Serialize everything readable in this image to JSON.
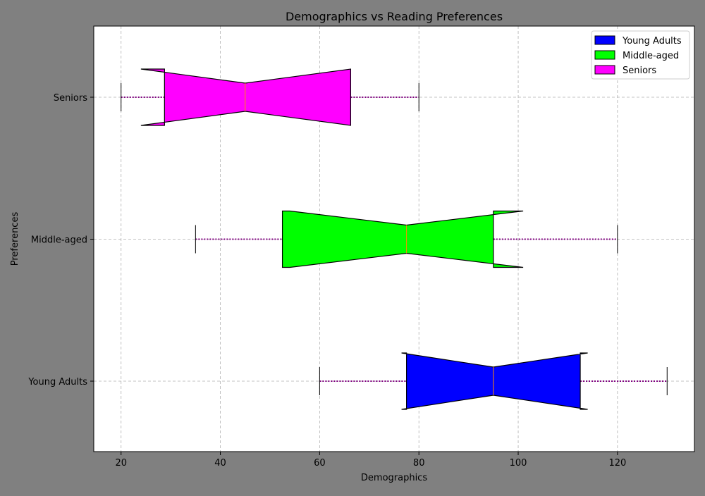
{
  "chart_data": {
    "type": "boxplot",
    "orientation": "horizontal",
    "notched": true,
    "title": "Demographics vs Reading Preferences",
    "xlabel": "Demographics",
    "ylabel": "Preferences",
    "xlim": [
      14.5,
      135.5
    ],
    "xticks": [
      20,
      40,
      60,
      80,
      100,
      120
    ],
    "grid": true,
    "legend_position": "top-right",
    "categories": [
      "Young Adults",
      "Middle-aged",
      "Seniors"
    ],
    "series": [
      {
        "name": "Young Adults",
        "color": "#0000ff",
        "whisker_low": 60,
        "q1": 77.5,
        "median": 95,
        "q3": 112.5,
        "whisker_high": 130,
        "notch_low": 76.5,
        "notch_high": 114
      },
      {
        "name": "Middle-aged",
        "color": "#00ff00",
        "whisker_low": 35,
        "q1": 52.5,
        "median": 77.5,
        "q3": 95,
        "whisker_high": 120,
        "notch_low": 54,
        "notch_high": 101
      },
      {
        "name": "Seniors",
        "color": "#ff00ff",
        "whisker_low": 20,
        "q1": 28.75,
        "median": 45,
        "q3": 66.25,
        "whisker_high": 80,
        "notch_low": 24,
        "notch_high": 66.25
      }
    ],
    "whisker_color": "#800080",
    "median_color": "#ff8c00"
  }
}
